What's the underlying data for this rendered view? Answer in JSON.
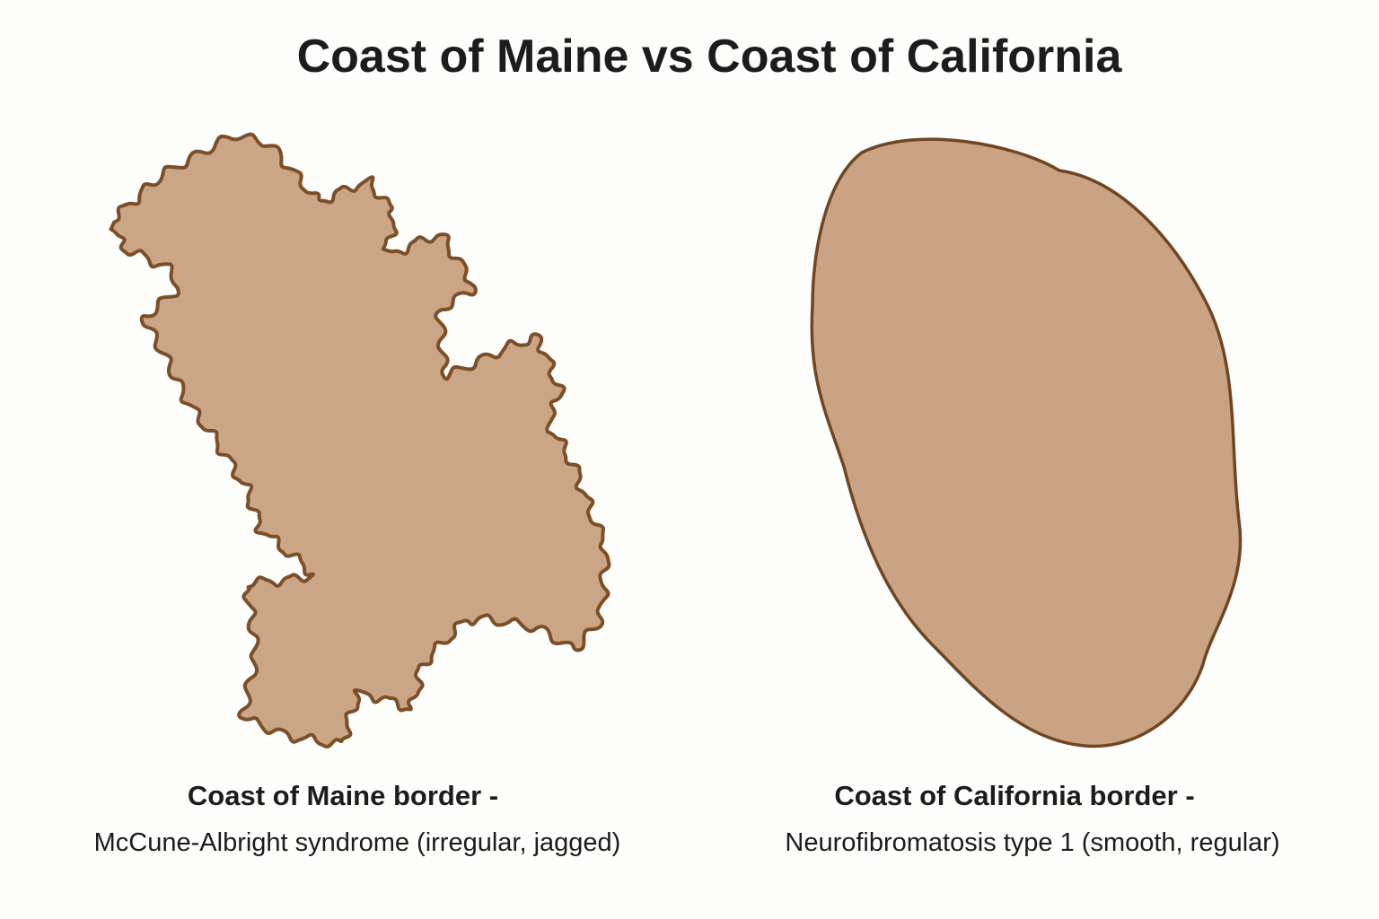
{
  "title": "Coast of Maine vs Coast of California",
  "panels": [
    {
      "caption": [
        "Coast of Maine border -",
        "McCune-Albright syndrome (irregular, jagged)"
      ]
    },
    {
      "caption": [
        "Coast of California border -",
        "Neurofibromatosis type 1 (smooth, regular)"
      ]
    }
  ]
}
